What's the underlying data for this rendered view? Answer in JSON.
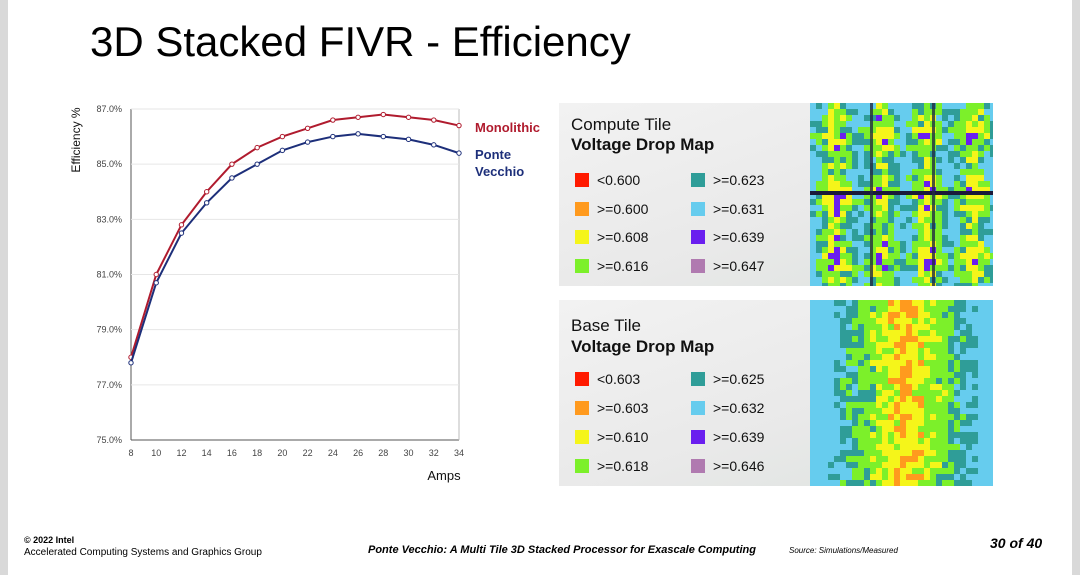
{
  "slide": {
    "title": "3D Stacked FIVR - Efficiency"
  },
  "chart_data": {
    "type": "line",
    "title": "",
    "xlabel": "Amps",
    "ylabel": "Efficiency %",
    "x": [
      8,
      10,
      12,
      14,
      16,
      18,
      20,
      22,
      24,
      26,
      28,
      30,
      32,
      34
    ],
    "xticks": [
      "8",
      "10",
      "12",
      "14",
      "16",
      "18",
      "20",
      "22",
      "24",
      "26",
      "28",
      "30",
      "32",
      "34"
    ],
    "ylim": [
      75,
      87
    ],
    "yticks": [
      "75.0%",
      "77.0%",
      "79.0%",
      "81.0%",
      "83.0%",
      "85.0%",
      "87.0%"
    ],
    "ytick_values": [
      75,
      77,
      79,
      81,
      83,
      85,
      87
    ],
    "series": [
      {
        "name": "Monolithic",
        "color": "#b01b2e",
        "values": [
          78.0,
          81.0,
          82.8,
          84.0,
          85.0,
          85.6,
          86.0,
          86.3,
          86.6,
          86.7,
          86.8,
          86.7,
          86.6,
          86.4
        ]
      },
      {
        "name": "Ponte Vecchio",
        "color": "#1d2f7a",
        "values": [
          77.8,
          80.7,
          82.5,
          83.6,
          84.5,
          85.0,
          85.5,
          85.8,
          86.0,
          86.1,
          86.0,
          85.9,
          85.7,
          85.4
        ]
      }
    ],
    "legend": [
      "Monolithic",
      "Ponte Vecchio"
    ]
  },
  "compute_map": {
    "title_line1": "Compute Tile",
    "title_line2": "Voltage Drop Map",
    "legend": [
      {
        "label": "<0.600",
        "color": "#ff1a00"
      },
      {
        "label": ">=0.600",
        "color": "#ff9a1e"
      },
      {
        "label": ">=0.608",
        "color": "#f5f51a"
      },
      {
        "label": ">=0.616",
        "color": "#7cf02a"
      },
      {
        "label": ">=0.623",
        "color": "#2f9d98"
      },
      {
        "label": ">=0.631",
        "color": "#66ccee"
      },
      {
        "label": ">=0.639",
        "color": "#6a1fef"
      },
      {
        "label": ">=0.647",
        "color": "#b07ab0"
      }
    ]
  },
  "base_map": {
    "title_line1": "Base Tile",
    "title_line2": "Voltage Drop Map",
    "legend": [
      {
        "label": "<0.603",
        "color": "#ff1a00"
      },
      {
        "label": ">=0.603",
        "color": "#ff9a1e"
      },
      {
        "label": ">=0.610",
        "color": "#f5f51a"
      },
      {
        "label": ">=0.618",
        "color": "#7cf02a"
      },
      {
        "label": ">=0.625",
        "color": "#2f9d98"
      },
      {
        "label": ">=0.632",
        "color": "#66ccee"
      },
      {
        "label": ">=0.639",
        "color": "#6a1fef"
      },
      {
        "label": ">=0.646",
        "color": "#b07ab0"
      }
    ]
  },
  "footer": {
    "copyright": "© 2022 Intel",
    "group": "Accelerated Computing Systems and Graphics Group",
    "paper": "Ponte Vecchio: A Multi Tile 3D Stacked Processor for Exascale Computing",
    "source": "Source: Simulations/Measured",
    "page": "30 of 40"
  }
}
